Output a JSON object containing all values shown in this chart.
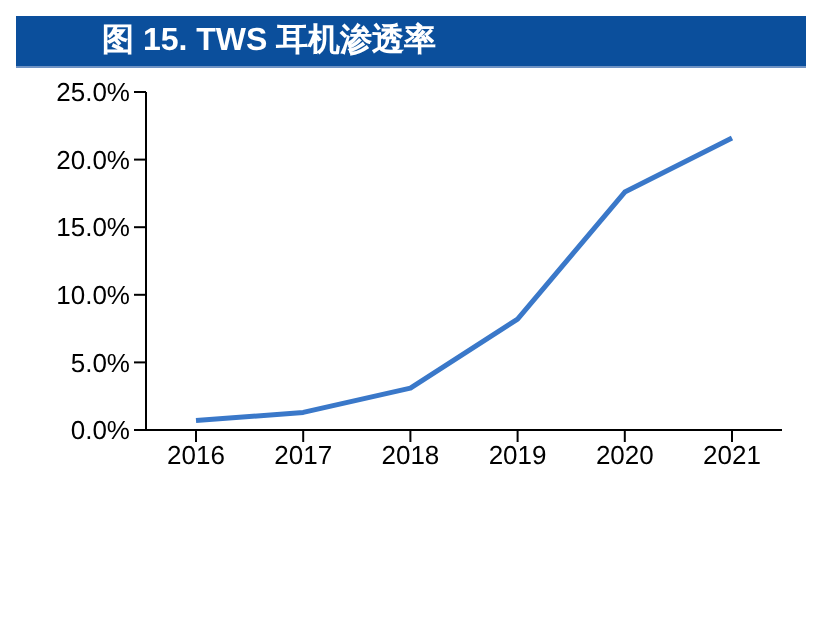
{
  "chart_data": {
    "type": "line",
    "title": "图 15. TWS 耳机渗透率",
    "categories": [
      "2016",
      "2017",
      "2018",
      "2019",
      "2020",
      "2021"
    ],
    "series": [
      {
        "color": "#3a78c9",
        "values": [
          0.7,
          1.3,
          3.1,
          8.2,
          17.6,
          21.6
        ]
      }
    ],
    "ylim": [
      0,
      25
    ],
    "yticks": [
      {
        "value": 0,
        "label": "0.0%"
      },
      {
        "value": 5,
        "label": "5.0%"
      },
      {
        "value": 10,
        "label": "10.0%"
      },
      {
        "value": 15,
        "label": "15.0%"
      },
      {
        "value": 20,
        "label": "20.0%"
      },
      {
        "value": 25,
        "label": "25.0%"
      }
    ],
    "grid": false,
    "legend": false,
    "marker": "none",
    "line_style": "solid"
  }
}
